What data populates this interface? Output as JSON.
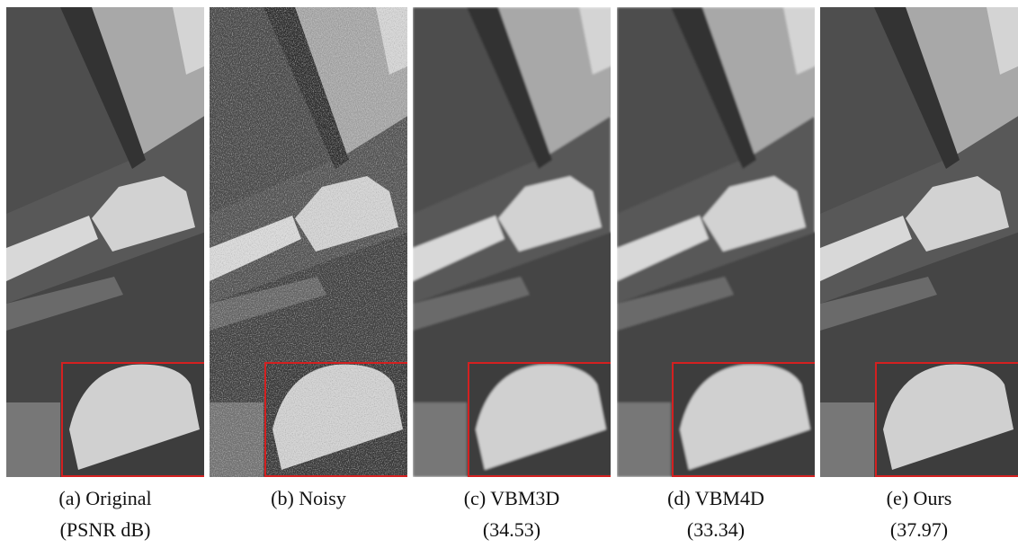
{
  "panels": [
    {
      "caption": "(a) Original",
      "detail": "(PSNR dB)"
    },
    {
      "caption": "(b) Noisy"
    },
    {
      "caption": "(c) VBM3D",
      "detail": "(34.53)"
    },
    {
      "caption": "(d) VBM4D",
      "detail": "(33.34)"
    },
    {
      "caption": "(e) Ours",
      "detail": "(37.97)"
    }
  ]
}
